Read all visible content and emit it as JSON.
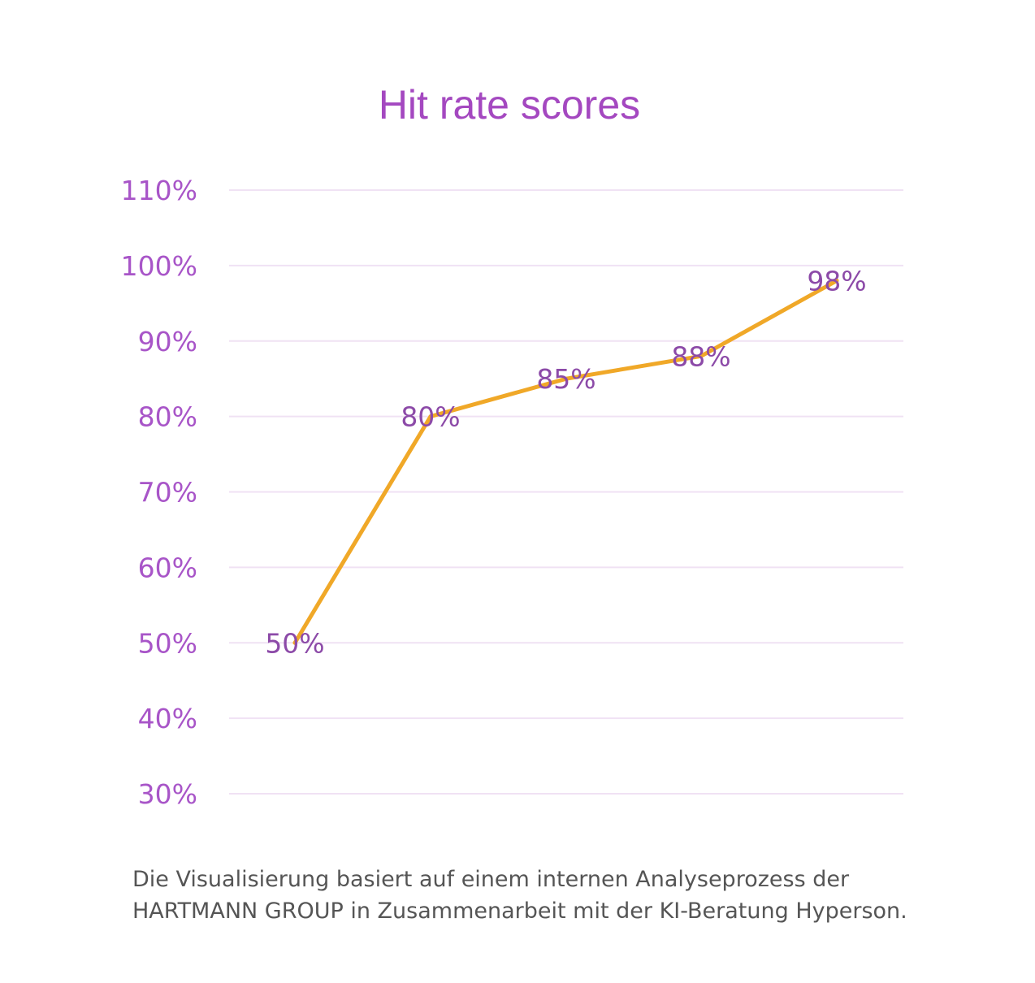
{
  "chart_data": {
    "type": "line",
    "title": "Hit rate scores",
    "xlabel": "",
    "ylabel": "",
    "ylim": [
      30,
      110
    ],
    "yticks": [
      "110%",
      "100%",
      "90%",
      "80%",
      "70%",
      "60%",
      "50%",
      "40%",
      "30%"
    ],
    "ytick_values": [
      110,
      100,
      90,
      80,
      70,
      60,
      50,
      40,
      30
    ],
    "grid": true,
    "legend": "none",
    "series": [
      {
        "values": [
          50,
          80,
          85,
          88,
          98
        ],
        "labels": [
          "50%",
          "80%",
          "85%",
          "88%",
          "98%"
        ],
        "color": "#f0a828"
      }
    ],
    "colors": {
      "title": "#a448c0",
      "ticks": "#a855c8",
      "data_labels": "#8c4aa8",
      "grid": "#f0e2f4"
    }
  },
  "footer": "Die Visualisierung basiert auf einem internen Analyseprozess der HARTMANN GROUP in Zusammenarbeit mit der KI-Beratung Hyperson."
}
